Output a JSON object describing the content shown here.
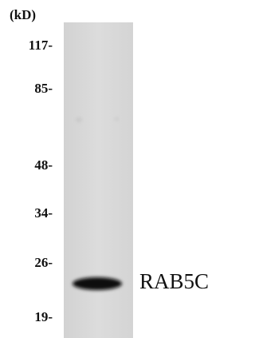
{
  "unit_label": "(kD)",
  "markers": [
    "117-",
    "85-",
    "48-",
    "34-",
    "26-",
    "19-"
  ],
  "band_label": "RAB5C"
}
